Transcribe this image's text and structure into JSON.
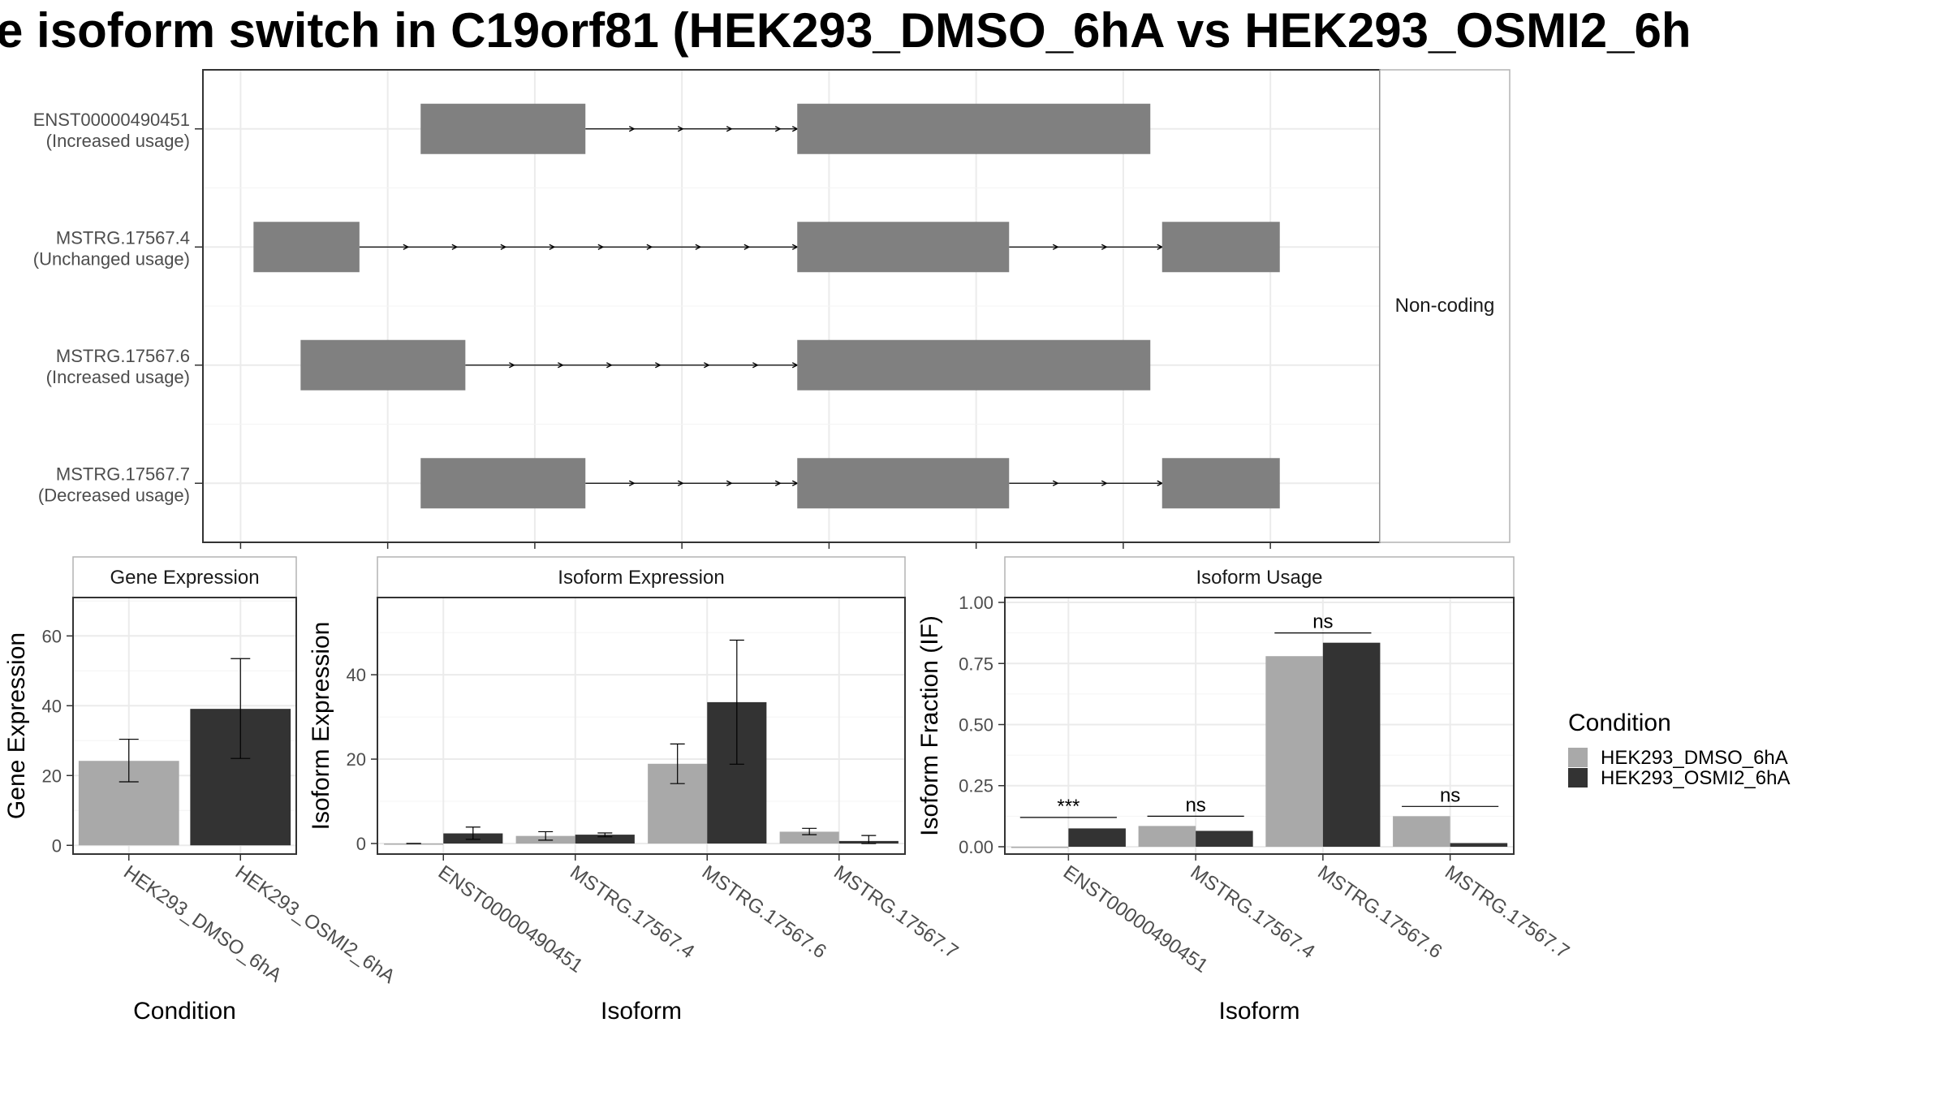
{
  "title": "e isoform switch in C19orf81 (HEK293_DMSO_6hA vs HEK293_OSMI2_6h",
  "colors": {
    "exon": "#808080",
    "dmso": "#a9a9a9",
    "osmi": "#333333",
    "grid": "#ebebeb",
    "border": "#333333",
    "strip_border": "#b3b3b3"
  },
  "structure": {
    "facet_label": "Non-coding",
    "coord_range": [
      0,
      100
    ],
    "grid_x": [
      3.2,
      15.7,
      28.2,
      40.7,
      53.2,
      65.7,
      78.2,
      90.7
    ],
    "transcripts": [
      {
        "id": "ENST00000490451",
        "usage": "(Increased usage)",
        "exons": [
          [
            18.5,
            32.5
          ],
          [
            50.5,
            80.5
          ]
        ]
      },
      {
        "id": "MSTRG.17567.4",
        "usage": "(Unchanged usage)",
        "exons": [
          [
            4.3,
            13.3
          ],
          [
            50.5,
            68.5
          ],
          [
            81.5,
            91.5
          ]
        ]
      },
      {
        "id": "MSTRG.17567.6",
        "usage": "(Increased usage)",
        "exons": [
          [
            8.3,
            22.3
          ],
          [
            50.5,
            80.5
          ]
        ]
      },
      {
        "id": "MSTRG.17567.7",
        "usage": "(Decreased usage)",
        "exons": [
          [
            18.5,
            32.5
          ],
          [
            50.5,
            68.5
          ],
          [
            81.5,
            91.5
          ]
        ]
      }
    ]
  },
  "gene_expression": {
    "strip": "Gene Expression",
    "ylabel": "Gene Expression",
    "xlabel": "Condition",
    "ylim": [
      -2.5,
      71
    ],
    "yticks": [
      0,
      20,
      40,
      60
    ],
    "categories": [
      "HEK293_DMSO_6hA",
      "HEK293_OSMI2_6hA"
    ],
    "values": [
      24.2,
      39.1
    ],
    "err_low": [
      18.2,
      24.9
    ],
    "err_high": [
      30.4,
      53.5
    ]
  },
  "isoform_expression": {
    "strip": "Isoform Expression",
    "ylabel": "Isoform Expression",
    "xlabel": "Isoform",
    "ylim": [
      -2.5,
      58.3
    ],
    "yticks": [
      0,
      20,
      40
    ],
    "categories": [
      "ENST00000490451",
      "MSTRG.17567.4",
      "MSTRG.17567.6",
      "MSTRG.17567.7"
    ],
    "series": [
      {
        "name": "HEK293_DMSO_6hA",
        "values": [
          0.0,
          1.8,
          18.9,
          2.8
        ],
        "err_low": [
          0.0,
          0.8,
          14.2,
          2.1
        ],
        "err_high": [
          0.0,
          2.8,
          23.6,
          3.6
        ]
      },
      {
        "name": "HEK293_OSMI2_6hA",
        "values": [
          2.4,
          2.1,
          33.5,
          0.6
        ],
        "err_low": [
          1.0,
          1.6,
          18.8,
          0.0
        ],
        "err_high": [
          3.9,
          2.5,
          48.2,
          1.9
        ]
      }
    ]
  },
  "isoform_usage": {
    "strip": "Isoform Usage",
    "ylabel": "Isoform Fraction (IF)",
    "xlabel": "Isoform",
    "ylim": [
      -0.03,
      1.02
    ],
    "yticks": [
      "0.00",
      "0.25",
      "0.50",
      "0.75",
      "1.00"
    ],
    "categories": [
      "ENST00000490451",
      "MSTRG.17567.4",
      "MSTRG.17567.6",
      "MSTRG.17567.7"
    ],
    "series": [
      {
        "name": "HEK293_DMSO_6hA",
        "values": [
          0.0,
          0.085,
          0.78,
          0.125
        ]
      },
      {
        "name": "HEK293_OSMI2_6hA",
        "values": [
          0.075,
          0.065,
          0.835,
          0.015
        ]
      }
    ],
    "significance": [
      "***",
      "ns",
      "ns",
      "ns"
    ],
    "sig_y": [
      0.12,
      0.125,
      0.875,
      0.165
    ]
  },
  "legend": {
    "title": "Condition",
    "items": [
      "HEK293_DMSO_6hA",
      "HEK293_OSMI2_6hA"
    ]
  }
}
